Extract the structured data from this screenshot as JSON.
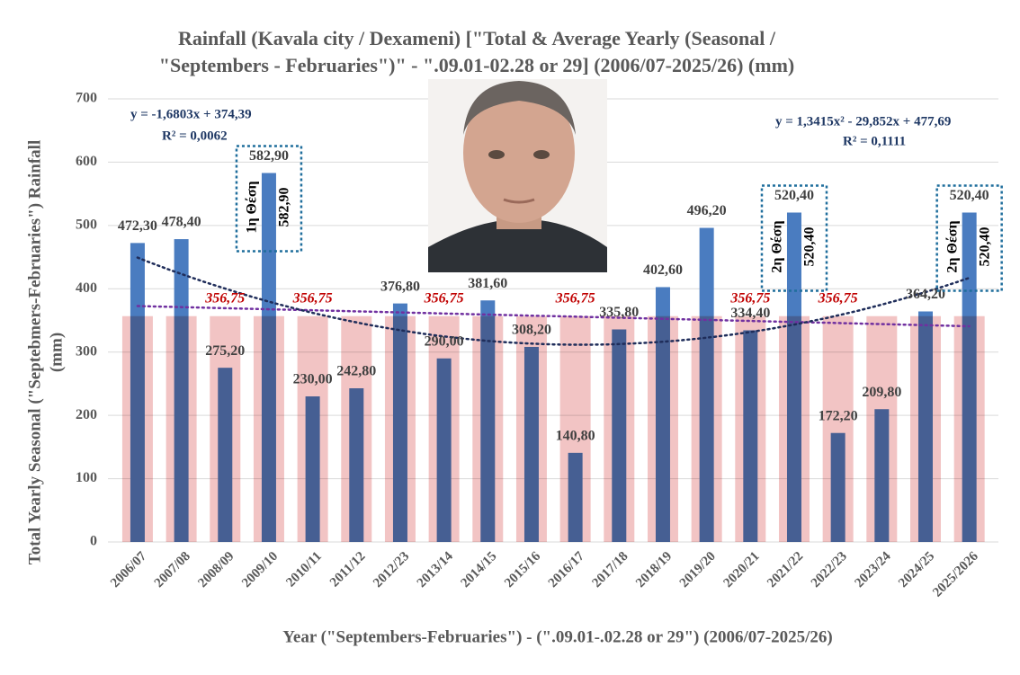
{
  "chart_data": {
    "type": "bar",
    "title": [
      "Rainfall (Kavala city / Dexameni) [\"Total & Average Yearly (Seasonal /",
      "\"Septembers - Februaries\")\" - \".09.01-02.28 or 29] (2006/07-2025/26) (mm)"
    ],
    "y_label": [
      "Total Yearly Seasonal (\"Septebmers-Februaries\") Rainfall",
      "(mm)"
    ],
    "x_label": "Year (\"Septembers-Februaries\") - (\".09.01-.02.28 or 29\") (2006/07-2025/26)",
    "categories": [
      "2006/07",
      "2007/08",
      "2008/09",
      "2009/10",
      "2010/11",
      "2011/12",
      "2012/23",
      "2013/14",
      "2014/15",
      "2015/16",
      "2016/17",
      "2017/18",
      "2018/19",
      "2019/20",
      "2020/21",
      "2021/22",
      "2022/23",
      "2023/24",
      "2024/25",
      "2025/2026"
    ],
    "series": [
      {
        "color": "#4a7cc0",
        "values": [
          472.3,
          478.4,
          275.2,
          582.9,
          230.0,
          242.8,
          376.8,
          290.0,
          381.6,
          308.2,
          140.8,
          335.8,
          402.6,
          496.2,
          334.4,
          520.4,
          172.2,
          209.8,
          364.2,
          520.4
        ],
        "value_labels": [
          "472,30",
          "478,40",
          "275,20",
          "582,90",
          "230,00",
          "242,80",
          "376,80",
          "290,00",
          "381,60",
          "308,20",
          "140,80",
          "335,80",
          "402,60",
          "496,20",
          "334,40",
          "520,40",
          "172,20",
          "209,80",
          "364,20",
          "520,40"
        ]
      },
      {
        "color": "#f2c4c4",
        "label_color": "#c00000",
        "values": [
          356.75,
          356.75,
          356.75,
          356.75,
          356.75,
          356.75,
          356.75,
          356.75,
          356.75,
          356.75,
          356.75,
          356.75,
          356.75,
          356.75,
          356.75,
          356.75,
          356.75,
          356.75,
          356.75,
          356.75
        ],
        "value_labels": [
          null,
          null,
          "356,75",
          null,
          "356,75",
          null,
          null,
          "356,75",
          null,
          null,
          "356,75",
          null,
          null,
          null,
          "356,75",
          null,
          "356,75",
          null,
          null,
          null
        ]
      }
    ],
    "trendlines": [
      {
        "kind": "linear",
        "color": "#7030a0",
        "coefficients": [
          -1.6803,
          374.39
        ],
        "equation": "y = -1,6803x + 374,39",
        "r2": "R² = 0,0062"
      },
      {
        "kind": "polynomial",
        "color": "#1f2d5a",
        "coefficients": [
          1.3415,
          -29.852,
          477.69
        ],
        "equation": "y = 1,3415x² - 29,852x + 477,69",
        "r2": "R² = 0,1111"
      }
    ],
    "annotations": [
      {
        "text": "1η Θέση",
        "value": 582.9,
        "value_label": "582,90"
      },
      {
        "text": "2η Θέση",
        "value": 520.4,
        "value_label": "520,40"
      },
      {
        "text": "2η Θέση",
        "value": 520.4,
        "value_label": "520,40"
      }
    ],
    "ylim": [
      0,
      700
    ],
    "yticks": [
      0,
      100,
      200,
      300,
      400,
      500,
      600,
      700
    ],
    "grid": true
  }
}
